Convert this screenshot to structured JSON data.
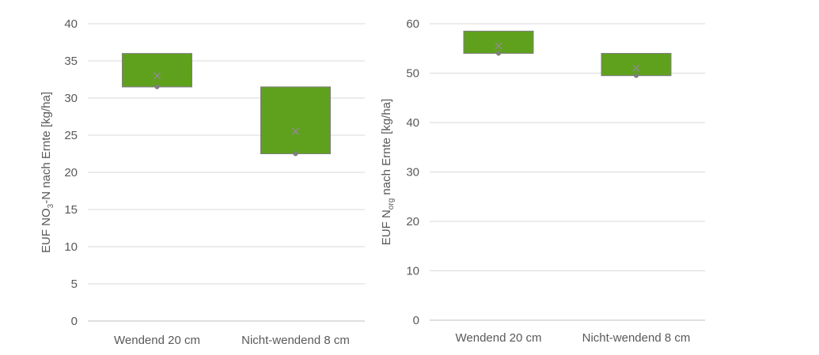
{
  "chart_data": [
    {
      "type": "box",
      "ylabel": {
        "prefix": "EUF NO",
        "subscript": "3",
        "suffix": "-N nach Ernte [kg/ha]"
      },
      "categories": [
        "Wendend 20 cm",
        "Nicht-wendend 8 cm"
      ],
      "ylim": [
        0,
        40
      ],
      "yticks": [
        0,
        5,
        10,
        15,
        20,
        25,
        30,
        35,
        40
      ],
      "grid": true,
      "boxes": [
        {
          "q1": 31.5,
          "median": 31.5,
          "q3": 36.0,
          "min": 31.5,
          "max": 36.0,
          "mean": 33.0
        },
        {
          "q1": 22.5,
          "median": 22.5,
          "q3": 31.5,
          "min": 22.5,
          "max": 31.5,
          "mean": 25.5
        }
      ],
      "box_color": "#5fa11d",
      "box_edge": "#7f7f7f",
      "mean_marker_color": "#8c8c8c"
    },
    {
      "type": "box",
      "ylabel": {
        "prefix": "EUF N",
        "subscript": "org",
        "suffix": " nach Ernte [kg/ha]"
      },
      "categories": [
        "Wendend 20 cm",
        "Nicht-wendend 8 cm"
      ],
      "ylim": [
        0,
        60
      ],
      "yticks": [
        0,
        10,
        20,
        30,
        40,
        50,
        60
      ],
      "grid": true,
      "boxes": [
        {
          "q1": 54.0,
          "median": 54.0,
          "q3": 58.5,
          "min": 54.0,
          "max": 58.5,
          "mean": 55.5
        },
        {
          "q1": 49.5,
          "median": 49.5,
          "q3": 54.0,
          "min": 49.5,
          "max": 54.0,
          "mean": 51.0
        }
      ],
      "box_color": "#5fa11d",
      "box_edge": "#7f7f7f",
      "mean_marker_color": "#8c8c8c"
    }
  ]
}
